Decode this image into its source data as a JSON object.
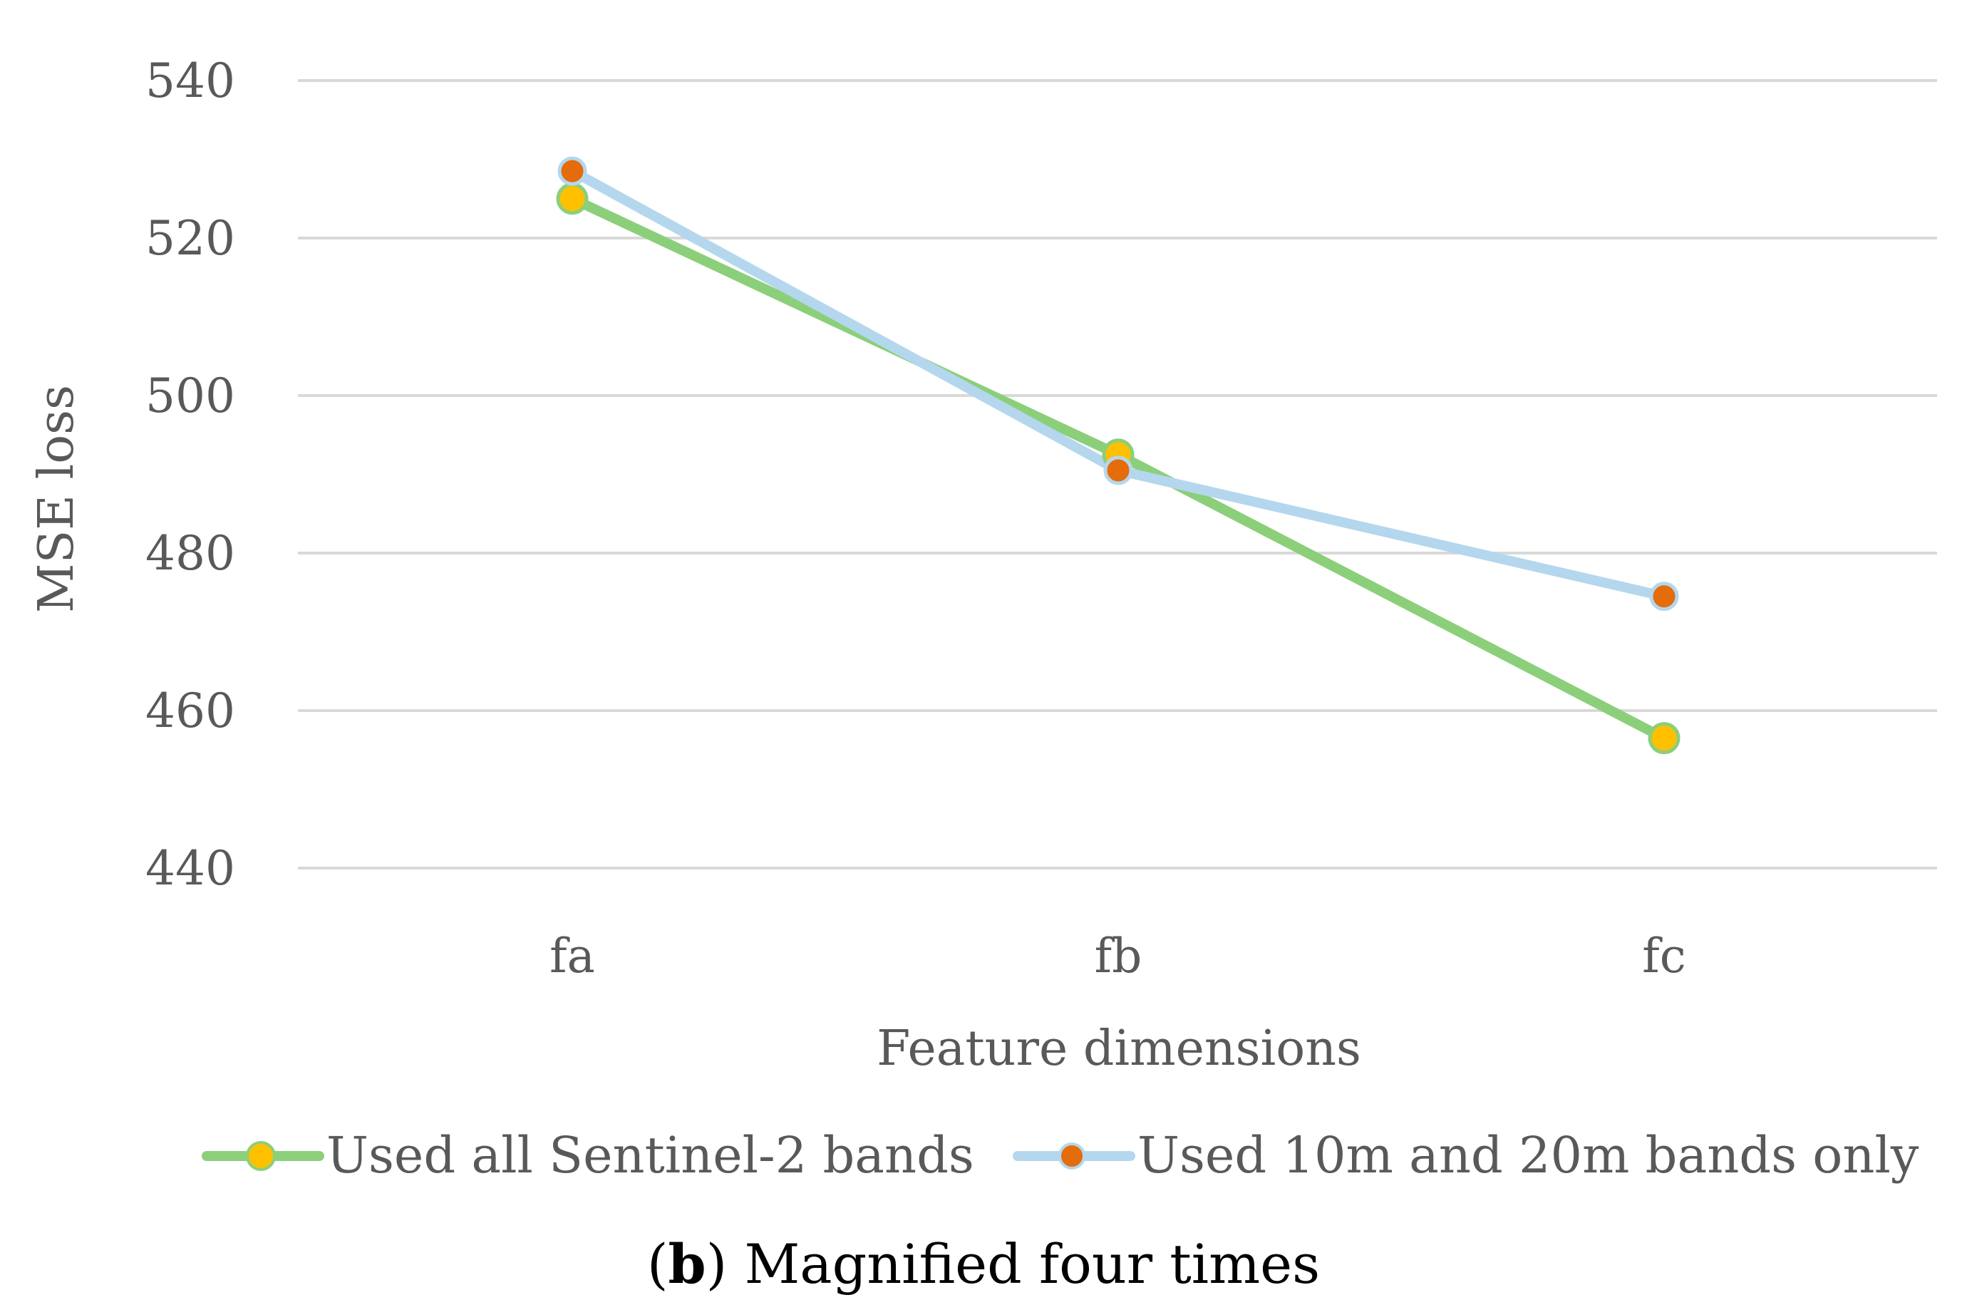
{
  "chart_data": {
    "type": "line",
    "title": "",
    "xlabel": "Feature dimensions",
    "ylabel": "MSE  loss",
    "categories": [
      "fa",
      "fb",
      "fc"
    ],
    "ylim": [
      440,
      540
    ],
    "yticks": [
      440,
      460,
      480,
      500,
      520,
      540
    ],
    "grid": true,
    "legend_position": "bottom",
    "series": [
      {
        "name": "Used all Sentinel-2 bands",
        "values": [
          525,
          492.5,
          456.5
        ],
        "line_color": "#8CCF7A",
        "marker_color": "#FFC000"
      },
      {
        "name": "Used 10m and 20m bands only",
        "values": [
          528.5,
          490.5,
          474.5
        ],
        "line_color": "#B4D7EE",
        "marker_color": "#E46C0A"
      }
    ]
  },
  "caption": {
    "label": "b",
    "text": "Magnified four times"
  }
}
